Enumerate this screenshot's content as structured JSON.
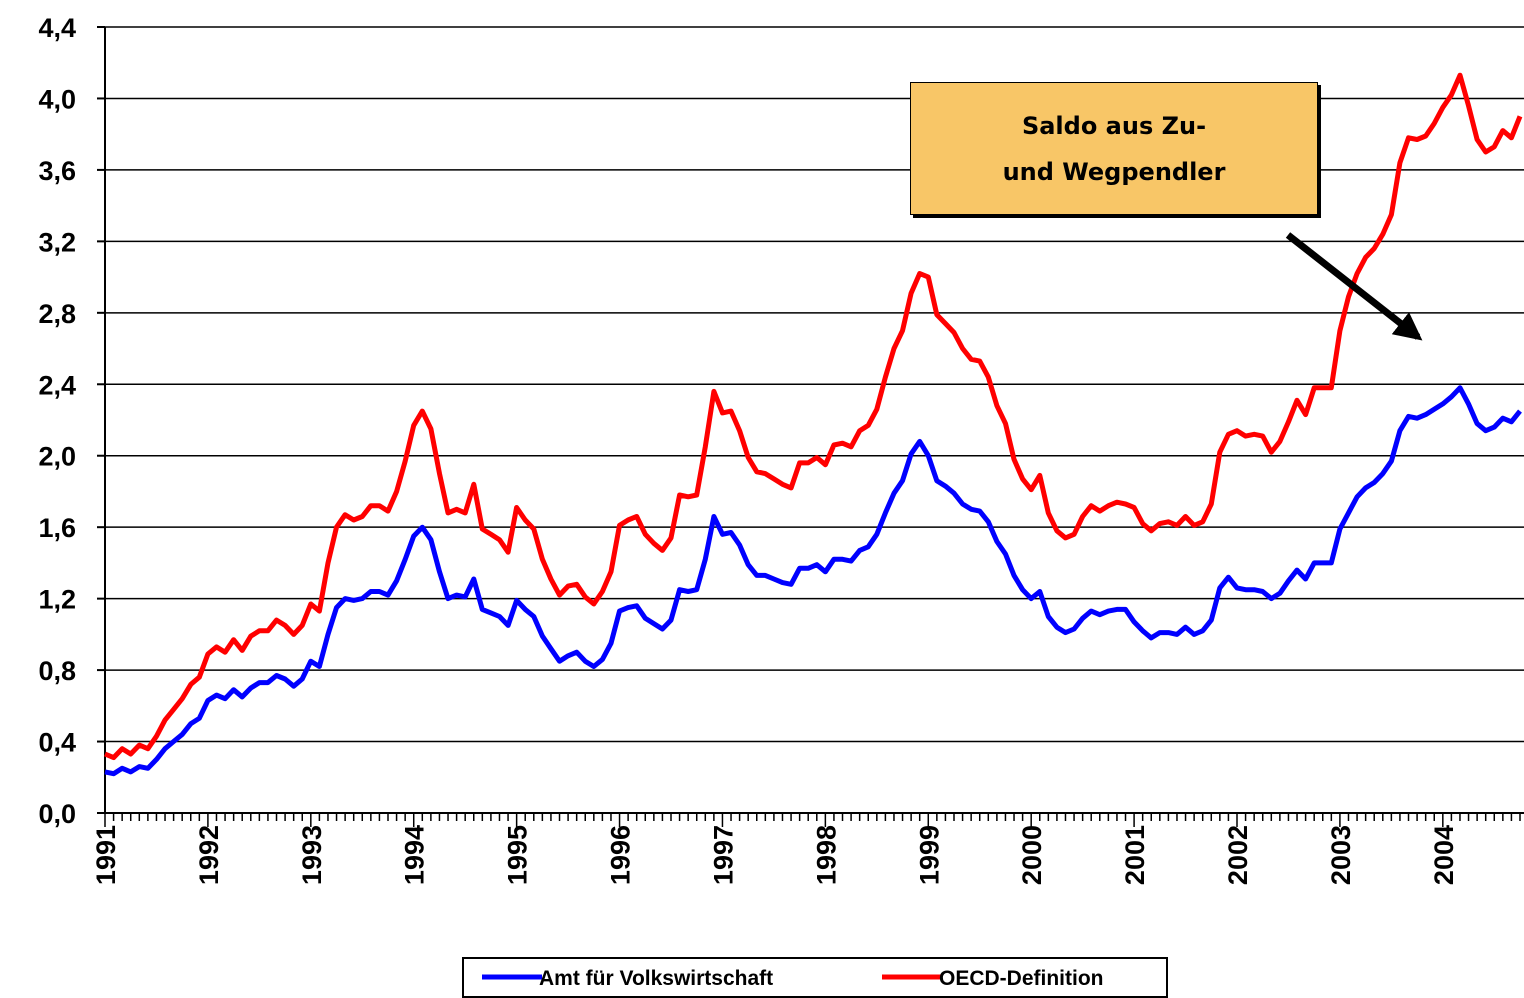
{
  "chart_data": {
    "type": "line",
    "annotation": "Saldo aus Zu- und Wegpendler",
    "categories": [
      "1991",
      null,
      null,
      null,
      null,
      null,
      null,
      null,
      null,
      null,
      null,
      null,
      "1992",
      null,
      null,
      null,
      null,
      null,
      null,
      null,
      null,
      null,
      null,
      null,
      "1993",
      null,
      null,
      null,
      null,
      null,
      null,
      null,
      null,
      null,
      null,
      null,
      "1994",
      null,
      null,
      null,
      null,
      null,
      null,
      null,
      null,
      null,
      null,
      null,
      "1995",
      null,
      null,
      null,
      null,
      null,
      null,
      null,
      null,
      null,
      null,
      null,
      "1996",
      null,
      null,
      null,
      null,
      null,
      null,
      null,
      null,
      null,
      null,
      null,
      "1997",
      null,
      null,
      null,
      null,
      null,
      null,
      null,
      null,
      null,
      null,
      null,
      "1998",
      null,
      null,
      null,
      null,
      null,
      null,
      null,
      null,
      null,
      null,
      null,
      "1999",
      null,
      null,
      null,
      null,
      null,
      null,
      null,
      null,
      null,
      null,
      null,
      "2000",
      null,
      null,
      null,
      null,
      null,
      null,
      null,
      null,
      null,
      null,
      null,
      "2001",
      null,
      null,
      null,
      null,
      null,
      null,
      null,
      null,
      null,
      null,
      null,
      "2002",
      null,
      null,
      null,
      null,
      null,
      null,
      null,
      null,
      null,
      null,
      null,
      "2003",
      null,
      null,
      null,
      null,
      null,
      null,
      null,
      null,
      null,
      null,
      null,
      "2004",
      null,
      null,
      null,
      null,
      null,
      null,
      null,
      null,
      null
    ],
    "series": [
      {
        "name": "Amt für Volkswirtschaft",
        "color": "#0000ff",
        "values": [
          0.23,
          0.22,
          0.25,
          0.23,
          0.26,
          0.25,
          0.3,
          0.36,
          0.4,
          0.44,
          0.5,
          0.53,
          0.63,
          0.66,
          0.64,
          0.69,
          0.65,
          0.7,
          0.73,
          0.73,
          0.77,
          0.75,
          0.71,
          0.75,
          0.85,
          0.82,
          1.0,
          1.15,
          1.2,
          1.19,
          1.2,
          1.24,
          1.24,
          1.22,
          1.3,
          1.42,
          1.55,
          1.6,
          1.53,
          1.35,
          1.2,
          1.22,
          1.21,
          1.31,
          1.14,
          1.12,
          1.1,
          1.05,
          1.19,
          1.14,
          1.1,
          0.99,
          0.92,
          0.85,
          0.88,
          0.9,
          0.85,
          0.82,
          0.86,
          0.95,
          1.13,
          1.15,
          1.16,
          1.09,
          1.06,
          1.03,
          1.08,
          1.25,
          1.24,
          1.25,
          1.42,
          1.66,
          1.56,
          1.57,
          1.5,
          1.39,
          1.33,
          1.33,
          1.31,
          1.29,
          1.28,
          1.37,
          1.37,
          1.39,
          1.35,
          1.42,
          1.42,
          1.41,
          1.47,
          1.49,
          1.56,
          1.68,
          1.79,
          1.86,
          2.01,
          2.08,
          2.0,
          1.86,
          1.83,
          1.79,
          1.73,
          1.7,
          1.69,
          1.63,
          1.52,
          1.45,
          1.33,
          1.25,
          1.2,
          1.24,
          1.1,
          1.04,
          1.01,
          1.03,
          1.09,
          1.13,
          1.11,
          1.13,
          1.14,
          1.14,
          1.07,
          1.02,
          0.98,
          1.01,
          1.01,
          1.0,
          1.04,
          1.0,
          1.02,
          1.08,
          1.26,
          1.32,
          1.26,
          1.25,
          1.25,
          1.24,
          1.2,
          1.23,
          1.3,
          1.36,
          1.31,
          1.4,
          1.4,
          1.4,
          1.59,
          1.68,
          1.77,
          1.82,
          1.85,
          1.9,
          1.97,
          2.14,
          2.22,
          2.21,
          2.23,
          2.26,
          2.29,
          2.33,
          2.38,
          2.29,
          2.18,
          2.14,
          2.16,
          2.21,
          2.19,
          2.25
        ]
      },
      {
        "name": "OECD-Definition",
        "color": "#ff0000",
        "values": [
          0.33,
          0.31,
          0.36,
          0.33,
          0.38,
          0.36,
          0.43,
          0.52,
          0.58,
          0.64,
          0.72,
          0.76,
          0.89,
          0.93,
          0.9,
          0.97,
          0.91,
          0.99,
          1.02,
          1.02,
          1.08,
          1.05,
          1.0,
          1.05,
          1.17,
          1.13,
          1.4,
          1.6,
          1.67,
          1.64,
          1.66,
          1.72,
          1.72,
          1.69,
          1.8,
          1.97,
          2.17,
          2.25,
          2.15,
          1.9,
          1.68,
          1.7,
          1.68,
          1.84,
          1.59,
          1.56,
          1.53,
          1.46,
          1.71,
          1.64,
          1.59,
          1.42,
          1.31,
          1.22,
          1.27,
          1.28,
          1.21,
          1.17,
          1.24,
          1.35,
          1.61,
          1.64,
          1.66,
          1.56,
          1.51,
          1.47,
          1.54,
          1.78,
          1.77,
          1.78,
          2.05,
          2.36,
          2.24,
          2.25,
          2.14,
          1.99,
          1.91,
          1.9,
          1.87,
          1.84,
          1.82,
          1.96,
          1.96,
          1.99,
          1.95,
          2.06,
          2.07,
          2.05,
          2.14,
          2.17,
          2.26,
          2.44,
          2.6,
          2.7,
          2.91,
          3.02,
          3.0,
          2.79,
          2.74,
          2.69,
          2.6,
          2.54,
          2.53,
          2.44,
          2.28,
          2.18,
          1.98,
          1.87,
          1.81,
          1.89,
          1.68,
          1.58,
          1.54,
          1.56,
          1.66,
          1.72,
          1.69,
          1.72,
          1.74,
          1.73,
          1.71,
          1.62,
          1.58,
          1.62,
          1.63,
          1.61,
          1.66,
          1.61,
          1.63,
          1.73,
          2.02,
          2.12,
          2.14,
          2.11,
          2.12,
          2.11,
          2.02,
          2.08,
          2.19,
          2.31,
          2.23,
          2.38,
          2.38,
          2.38,
          2.7,
          2.89,
          3.02,
          3.11,
          3.16,
          3.24,
          3.35,
          3.64,
          3.78,
          3.77,
          3.79,
          3.86,
          3.95,
          4.02,
          4.13,
          3.96,
          3.77,
          3.7,
          3.73,
          3.82,
          3.78,
          3.9
        ]
      }
    ],
    "ylim": [
      0,
      4.4
    ],
    "yticks": [
      {
        "value": 0,
        "label": "0,0"
      },
      {
        "value": 0.4,
        "label": "0,4"
      },
      {
        "value": 0.8,
        "label": "0,8"
      },
      {
        "value": 1.2,
        "label": "1,2"
      },
      {
        "value": 1.6,
        "label": "1,6"
      },
      {
        "value": 2.0,
        "label": "2,0"
      },
      {
        "value": 2.4,
        "label": "2,4"
      },
      {
        "value": 2.8,
        "label": "2,8"
      },
      {
        "value": 3.2,
        "label": "3,2"
      },
      {
        "value": 3.6,
        "label": "3,6"
      },
      {
        "value": 4.0,
        "label": "4,0"
      },
      {
        "value": 4.4,
        "label": "4,4"
      }
    ],
    "grid": true,
    "legend": "bottom"
  }
}
